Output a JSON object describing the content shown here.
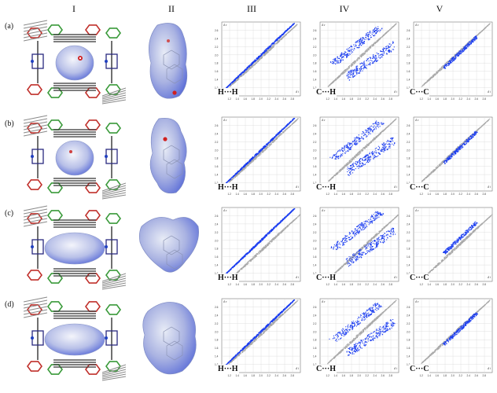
{
  "columns": [
    "I",
    "II",
    "III",
    "IV",
    "V"
  ],
  "rows": [
    {
      "label": "(a)",
      "plots": [
        "H···H",
        "C···H",
        "C···C"
      ]
    },
    {
      "label": "(b)",
      "plots": [
        "H···H",
        "C···H",
        "C···C"
      ]
    },
    {
      "label": "(c)",
      "plots": [
        "H···H",
        "C···H",
        "C···C"
      ]
    },
    {
      "label": "(d)",
      "plots": [
        "H···H",
        "C···H",
        "C···C"
      ]
    }
  ],
  "axes": {
    "de": "d e",
    "di": "d i",
    "y_ticks": [
      "1.0",
      "1.2",
      "1.4",
      "1.6",
      "1.8",
      "2.0",
      "2.2",
      "2.4",
      "2.6"
    ],
    "x_ticks": [
      "1.0",
      "1.2",
      "1.4",
      "1.6",
      "1.8",
      "2.0",
      "2.2",
      "2.4",
      "2.6",
      "2.8"
    ]
  },
  "colors": {
    "fingerprint_blue": "#1a3cf0",
    "fingerprint_grey": "#a9a9a9",
    "surface_blue": "#5d6fd8",
    "surface_light": "#e8ecf6",
    "framework_red": "#c0302b",
    "framework_green": "#3a9a3a",
    "framework_dark": "#333333"
  }
}
